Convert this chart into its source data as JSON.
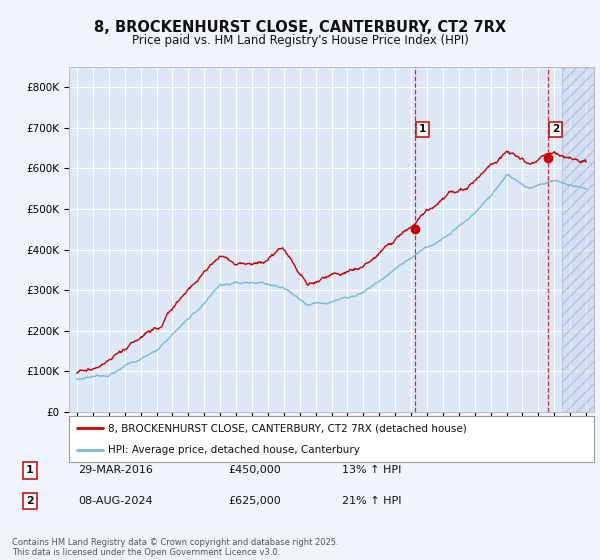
{
  "title": "8, BROCKENHURST CLOSE, CANTERBURY, CT2 7RX",
  "subtitle": "Price paid vs. HM Land Registry's House Price Index (HPI)",
  "ylim": [
    0,
    850000
  ],
  "yticks": [
    0,
    100000,
    200000,
    300000,
    400000,
    500000,
    600000,
    700000,
    800000
  ],
  "ytick_labels": [
    "£0",
    "£100K",
    "£200K",
    "£300K",
    "£400K",
    "£500K",
    "£600K",
    "£700K",
    "£800K"
  ],
  "background_color": "#f0f4fc",
  "plot_bg_color": "#dce8f5",
  "grid_color": "#ffffff",
  "red_line_color": "#cc0000",
  "blue_line_color": "#7ab8d9",
  "vline1_x": 2016.24,
  "vline2_x": 2024.6,
  "marker1_y": 450000,
  "marker2_y": 625000,
  "legend_line1": "8, BROCKENHURST CLOSE, CANTERBURY, CT2 7RX (detached house)",
  "legend_line2": "HPI: Average price, detached house, Canterbury",
  "table_rows": [
    {
      "label": "1",
      "date": "29-MAR-2016",
      "price": "£450,000",
      "change": "13% ↑ HPI"
    },
    {
      "label": "2",
      "date": "08-AUG-2024",
      "price": "£625,000",
      "change": "21% ↑ HPI"
    }
  ],
  "footer": "Contains HM Land Registry data © Crown copyright and database right 2025.\nThis data is licensed under the Open Government Licence v3.0.",
  "xmin": 1994.5,
  "xmax": 2027.5,
  "hatch_start": 2025.5
}
